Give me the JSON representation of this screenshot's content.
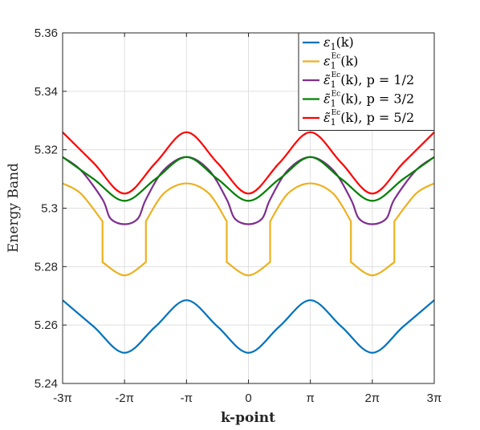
{
  "chart_data": {
    "type": "line",
    "title": "",
    "xlabel": "k-point",
    "ylabel": "Energy Band",
    "xlim": [
      -9.42478,
      9.42478
    ],
    "ylim": [
      5.24,
      5.36
    ],
    "x_ticks": [
      {
        "value": -9.42478,
        "label": "-3π"
      },
      {
        "value": -6.28319,
        "label": "-2π"
      },
      {
        "value": -3.14159,
        "label": "-π"
      },
      {
        "value": 0,
        "label": "0"
      },
      {
        "value": 3.14159,
        "label": "π"
      },
      {
        "value": 6.28319,
        "label": "2π"
      },
      {
        "value": 9.42478,
        "label": "3π"
      }
    ],
    "y_ticks": [
      {
        "value": 5.24,
        "label": "5.24"
      },
      {
        "value": 5.26,
        "label": "5.26"
      },
      {
        "value": 5.28,
        "label": "5.28"
      },
      {
        "value": 5.3,
        "label": "5.3"
      },
      {
        "value": 5.32,
        "label": "5.32"
      },
      {
        "value": 5.34,
        "label": "5.34"
      },
      {
        "value": 5.36,
        "label": "5.36"
      }
    ],
    "grid": true,
    "legend_position": "top-right",
    "series": [
      {
        "name": "ε1(k)",
        "label_main": "ε",
        "label_sub": "1",
        "label_sup": "",
        "label_tail": "(k)",
        "color": "#0072BD",
        "x": [
          -9.42478,
          -7.85398,
          -6.28319,
          -4.71239,
          -3.14159,
          -1.5708,
          0,
          1.5708,
          3.14159,
          4.71239,
          6.28319,
          7.85398,
          9.42478
        ],
        "y": [
          5.2685,
          5.2595,
          5.2505,
          5.2595,
          5.2685,
          5.2595,
          5.2505,
          5.2595,
          5.2685,
          5.2595,
          5.2505,
          5.2595,
          5.2685
        ]
      },
      {
        "name": "ε1Ec(k)",
        "label_main": "ε",
        "label_sub": "1",
        "label_sup": "Ec",
        "label_tail": "(k)",
        "color": "#EDB120",
        "x": [
          -9.42478,
          -8.5,
          -7.4,
          -7.4,
          -6.28319,
          -5.2,
          -5.2,
          -4.3,
          -3.14159,
          -2.0,
          -1.1,
          -1.1,
          0,
          1.1,
          1.1,
          2.0,
          3.14159,
          4.3,
          5.2,
          5.2,
          6.28319,
          7.4,
          7.4,
          8.5,
          9.42478
        ],
        "y": [
          5.3085,
          5.305,
          5.2955,
          5.2815,
          5.277,
          5.2815,
          5.2955,
          5.305,
          5.3085,
          5.305,
          5.2955,
          5.2815,
          5.277,
          5.2815,
          5.2955,
          5.305,
          5.3085,
          5.305,
          5.2955,
          5.2815,
          5.277,
          5.2815,
          5.2955,
          5.305,
          5.3085
        ]
      },
      {
        "name": "ε̃1Ec(k), p = 1/2",
        "label_main": "ε̃",
        "label_sub": "1",
        "label_sup": "Ec",
        "label_tail": "(k), p = 1/2",
        "color": "#7E2F8E",
        "x": [
          -9.42478,
          -8.5,
          -7.4,
          -7.0,
          -6.28319,
          -5.6,
          -5.2,
          -4.3,
          -3.14159,
          -2.0,
          -1.1,
          -0.7,
          0,
          0.7,
          1.1,
          2.0,
          3.14159,
          4.3,
          5.2,
          5.6,
          6.28319,
          7.0,
          7.4,
          8.5,
          9.42478
        ],
        "y": [
          5.3175,
          5.313,
          5.303,
          5.2965,
          5.2945,
          5.2965,
          5.303,
          5.313,
          5.3175,
          5.313,
          5.303,
          5.2965,
          5.2945,
          5.2965,
          5.303,
          5.313,
          5.3175,
          5.313,
          5.303,
          5.2965,
          5.2945,
          5.2965,
          5.303,
          5.313,
          5.3175
        ]
      },
      {
        "name": "ε̃1Ec(k), p = 3/2",
        "label_main": "ε̃",
        "label_sub": "1",
        "label_sup": "Ec",
        "label_tail": "(k), p = 3/2",
        "color": "#008000",
        "x": [
          -9.42478,
          -7.85398,
          -6.28319,
          -4.71239,
          -3.14159,
          -1.5708,
          0,
          1.5708,
          3.14159,
          4.71239,
          6.28319,
          7.85398,
          9.42478
        ],
        "y": [
          5.3175,
          5.31,
          5.3025,
          5.31,
          5.3175,
          5.31,
          5.3025,
          5.31,
          5.3175,
          5.31,
          5.3025,
          5.31,
          5.3175
        ]
      },
      {
        "name": "ε̃1Ec(k), p = 5/2",
        "label_main": "ε̃",
        "label_sub": "1",
        "label_sup": "Ec",
        "label_tail": "(k), p = 5/2",
        "color": "#FF0000",
        "x": [
          -9.42478,
          -7.85398,
          -6.28319,
          -4.71239,
          -3.14159,
          -1.5708,
          0,
          1.5708,
          3.14159,
          4.71239,
          6.28319,
          7.85398,
          9.42478
        ],
        "y": [
          5.326,
          5.3155,
          5.305,
          5.3155,
          5.326,
          5.3155,
          5.305,
          5.3155,
          5.326,
          5.3155,
          5.305,
          5.3155,
          5.326
        ]
      }
    ]
  }
}
